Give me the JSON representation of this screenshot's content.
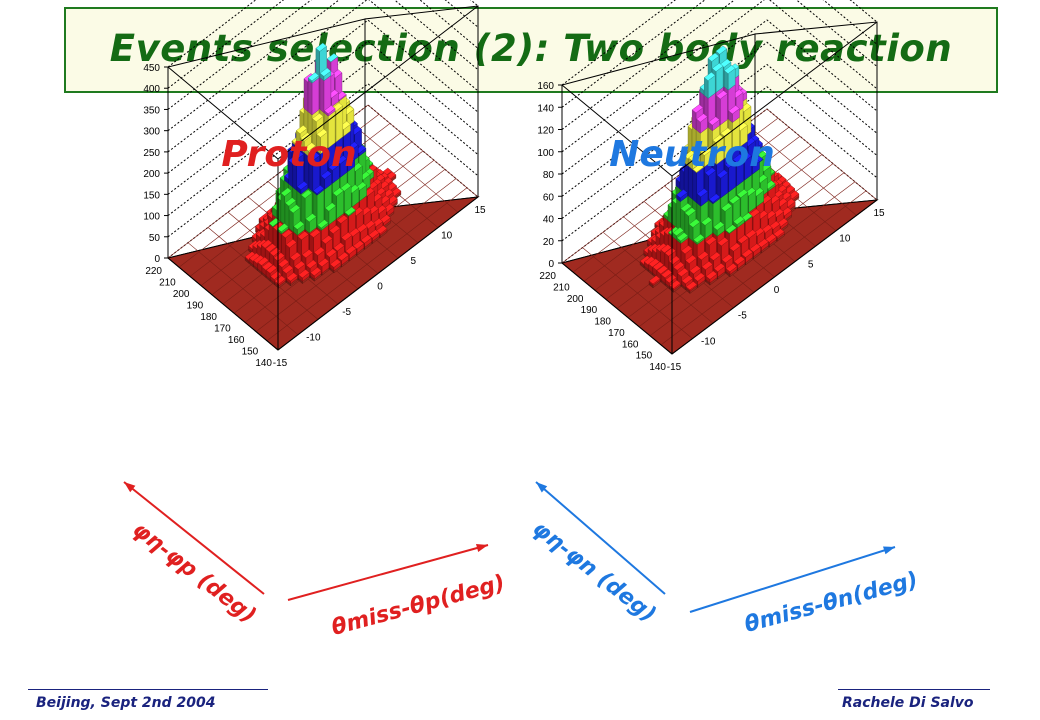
{
  "title": "Events selection (2): Two body reaction",
  "footer": {
    "left": "Beijing, Sept 2nd 2004",
    "right": "Rachele Di Salvo"
  },
  "colors": {
    "title": "#146b14",
    "proton": "#e02020",
    "neutron": "#1e78e0",
    "footer": "#1a237e",
    "frame": "#1f7a1f"
  },
  "chart_data": [
    {
      "type": "lego3d",
      "title": "Proton",
      "x_axis_label": "θmiss-θp(deg)",
      "y_axis_label": "φη-φp (deg)",
      "x_ticks": [
        "-15",
        "-10",
        "-5",
        "0",
        "5",
        "10",
        "15"
      ],
      "y_ticks": [
        "140",
        "150",
        "160",
        "170",
        "180",
        "190",
        "200",
        "210",
        "220"
      ],
      "z_ticks": [
        "0",
        "50",
        "100",
        "150",
        "200",
        "250",
        "300",
        "350",
        "400",
        "450"
      ],
      "xlim": [
        -15,
        15
      ],
      "ylim": [
        140,
        220
      ],
      "zlim": [
        0,
        450
      ],
      "peak": {
        "x": 0,
        "y": 180,
        "z": 400
      },
      "color_bands": [
        {
          "from": 0,
          "to": 5,
          "color": "#a02a20"
        },
        {
          "from": 5,
          "to": 75,
          "color": "#e01b1b"
        },
        {
          "from": 75,
          "to": 150,
          "color": "#2ec82e"
        },
        {
          "from": 150,
          "to": 225,
          "color": "#1a1ad8"
        },
        {
          "from": 225,
          "to": 300,
          "color": "#f0f040"
        },
        {
          "from": 300,
          "to": 375,
          "color": "#e040e0"
        },
        {
          "from": 375,
          "to": 450,
          "color": "#40e0e0"
        }
      ]
    },
    {
      "type": "lego3d",
      "title": "Neutron",
      "x_axis_label": "θmiss-θn(deg)",
      "y_axis_label": "φη-φn (deg)",
      "x_ticks": [
        "-15",
        "-10",
        "-5",
        "0",
        "5",
        "10",
        "15"
      ],
      "y_ticks": [
        "140",
        "150",
        "160",
        "170",
        "180",
        "190",
        "200",
        "210",
        "220"
      ],
      "z_ticks": [
        "0",
        "20",
        "40",
        "60",
        "80",
        "100",
        "120",
        "140",
        "160"
      ],
      "xlim": [
        -15,
        15
      ],
      "ylim": [
        140,
        220
      ],
      "zlim": [
        0,
        160
      ],
      "peak": {
        "x": 0,
        "y": 180,
        "z": 160
      },
      "color_bands": [
        {
          "from": 0,
          "to": 2,
          "color": "#a02a20"
        },
        {
          "from": 2,
          "to": 27,
          "color": "#e01b1b"
        },
        {
          "from": 27,
          "to": 53,
          "color": "#2ec82e"
        },
        {
          "from": 53,
          "to": 80,
          "color": "#1a1ad8"
        },
        {
          "from": 80,
          "to": 107,
          "color": "#f0f040"
        },
        {
          "from": 107,
          "to": 133,
          "color": "#e040e0"
        },
        {
          "from": 133,
          "to": 160,
          "color": "#40e0e0"
        }
      ]
    }
  ]
}
